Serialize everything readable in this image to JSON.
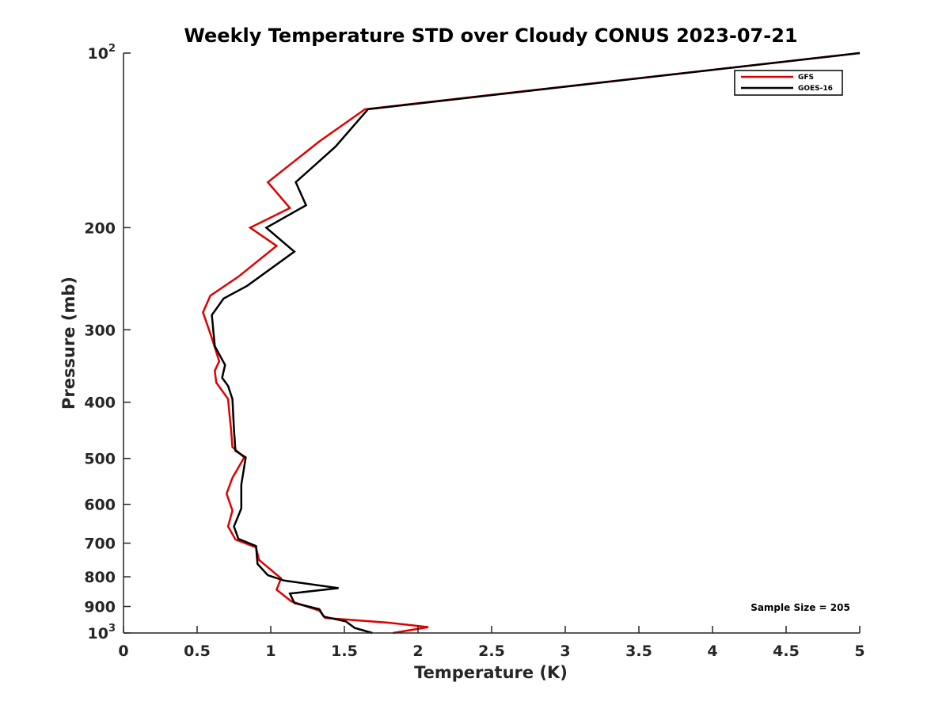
{
  "chart_data": {
    "type": "line",
    "title": "Weekly Temperature STD over Cloudy CONUS 2023-07-21",
    "xlabel": "Temperature (K)",
    "ylabel": "Pressure (mb)",
    "xlim": [
      0,
      5
    ],
    "ylim": [
      100,
      1000
    ],
    "y_scale": "log",
    "y_reversed": true,
    "grid": false,
    "legend_position": "top-right",
    "x_ticks": [
      {
        "value": 0,
        "label": "0"
      },
      {
        "value": 0.5,
        "label": "0.5"
      },
      {
        "value": 1,
        "label": "1"
      },
      {
        "value": 1.5,
        "label": "1.5"
      },
      {
        "value": 2,
        "label": "2"
      },
      {
        "value": 2.5,
        "label": "2.5"
      },
      {
        "value": 3,
        "label": "3"
      },
      {
        "value": 3.5,
        "label": "3.5"
      },
      {
        "value": 4,
        "label": "4"
      },
      {
        "value": 4.5,
        "label": "4.5"
      },
      {
        "value": 5,
        "label": "5"
      }
    ],
    "y_ticks": [
      {
        "value": 100,
        "label": "10",
        "sup": "2"
      },
      {
        "value": 200,
        "label": "200"
      },
      {
        "value": 300,
        "label": "300"
      },
      {
        "value": 400,
        "label": "400"
      },
      {
        "value": 500,
        "label": "500"
      },
      {
        "value": 600,
        "label": "600"
      },
      {
        "value": 700,
        "label": "700"
      },
      {
        "value": 800,
        "label": "800"
      },
      {
        "value": 900,
        "label": "900"
      },
      {
        "value": 1000,
        "label": "10",
        "sup": "3"
      }
    ],
    "series": [
      {
        "name": "GFS",
        "color": "#e00000",
        "points": [
          {
            "x": 5.0,
            "y": 100
          },
          {
            "x": 1.64,
            "y": 125
          },
          {
            "x": 1.33,
            "y": 142
          },
          {
            "x": 0.98,
            "y": 167
          },
          {
            "x": 1.13,
            "y": 185
          },
          {
            "x": 0.86,
            "y": 200
          },
          {
            "x": 1.04,
            "y": 215
          },
          {
            "x": 0.78,
            "y": 243
          },
          {
            "x": 0.59,
            "y": 262
          },
          {
            "x": 0.54,
            "y": 280
          },
          {
            "x": 0.6,
            "y": 310
          },
          {
            "x": 0.65,
            "y": 340
          },
          {
            "x": 0.62,
            "y": 353
          },
          {
            "x": 0.63,
            "y": 370
          },
          {
            "x": 0.71,
            "y": 395
          },
          {
            "x": 0.72,
            "y": 420
          },
          {
            "x": 0.73,
            "y": 445
          },
          {
            "x": 0.74,
            "y": 478
          },
          {
            "x": 0.82,
            "y": 498
          },
          {
            "x": 0.74,
            "y": 540
          },
          {
            "x": 0.7,
            "y": 575
          },
          {
            "x": 0.74,
            "y": 615
          },
          {
            "x": 0.71,
            "y": 655
          },
          {
            "x": 0.76,
            "y": 690
          },
          {
            "x": 0.9,
            "y": 712
          },
          {
            "x": 0.92,
            "y": 748
          },
          {
            "x": 1.07,
            "y": 805
          },
          {
            "x": 1.04,
            "y": 842
          },
          {
            "x": 1.14,
            "y": 882
          },
          {
            "x": 1.33,
            "y": 915
          },
          {
            "x": 1.37,
            "y": 942
          },
          {
            "x": 1.8,
            "y": 960
          },
          {
            "x": 2.07,
            "y": 977
          },
          {
            "x": 1.83,
            "y": 1000
          }
        ]
      },
      {
        "name": "GOES-16",
        "color": "#000000",
        "points": [
          {
            "x": 5.0,
            "y": 100
          },
          {
            "x": 1.66,
            "y": 125
          },
          {
            "x": 1.44,
            "y": 145
          },
          {
            "x": 1.17,
            "y": 167
          },
          {
            "x": 1.24,
            "y": 183
          },
          {
            "x": 0.97,
            "y": 200
          },
          {
            "x": 1.16,
            "y": 220
          },
          {
            "x": 0.84,
            "y": 252
          },
          {
            "x": 0.68,
            "y": 265
          },
          {
            "x": 0.6,
            "y": 283
          },
          {
            "x": 0.62,
            "y": 320
          },
          {
            "x": 0.69,
            "y": 345
          },
          {
            "x": 0.67,
            "y": 363
          },
          {
            "x": 0.71,
            "y": 375
          },
          {
            "x": 0.74,
            "y": 395
          },
          {
            "x": 0.75,
            "y": 445
          },
          {
            "x": 0.76,
            "y": 485
          },
          {
            "x": 0.83,
            "y": 498
          },
          {
            "x": 0.8,
            "y": 555
          },
          {
            "x": 0.8,
            "y": 610
          },
          {
            "x": 0.75,
            "y": 655
          },
          {
            "x": 0.78,
            "y": 688
          },
          {
            "x": 0.9,
            "y": 708
          },
          {
            "x": 0.91,
            "y": 760
          },
          {
            "x": 0.98,
            "y": 795
          },
          {
            "x": 1.09,
            "y": 812
          },
          {
            "x": 1.46,
            "y": 837
          },
          {
            "x": 1.13,
            "y": 855
          },
          {
            "x": 1.16,
            "y": 888
          },
          {
            "x": 1.33,
            "y": 910
          },
          {
            "x": 1.36,
            "y": 937
          },
          {
            "x": 1.51,
            "y": 955
          },
          {
            "x": 1.57,
            "y": 980
          },
          {
            "x": 1.69,
            "y": 1000
          }
        ]
      }
    ],
    "annotation": "Sample Size = 205"
  }
}
